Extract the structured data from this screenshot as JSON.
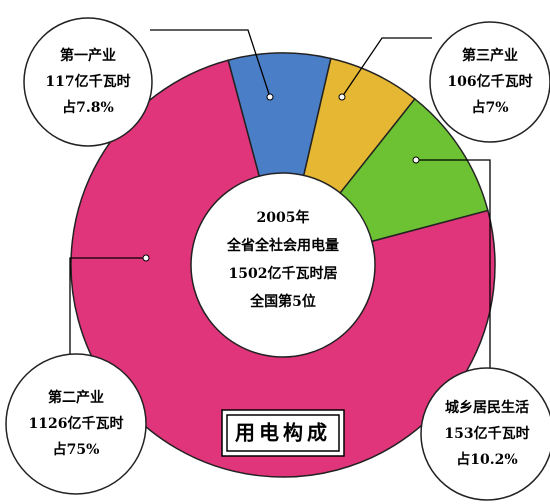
{
  "chart_data": {
    "type": "pie",
    "title": "用电构成",
    "center_text": [
      "2005年",
      "全省全社会用电量",
      "1502亿千瓦时居",
      "全国第5位"
    ],
    "categories": [
      "第一产业",
      "第三产业",
      "城乡居民生活",
      "第二产业"
    ],
    "values": [
      117,
      106,
      153,
      1126
    ],
    "value_labels": [
      "117亿千瓦时",
      "106亿千瓦时",
      "153亿千瓦时",
      "1126亿千瓦时"
    ],
    "share_labels": [
      "占7.8%",
      "占7%",
      "占10.2%",
      "占75%"
    ],
    "colors": [
      "#4a7fc8",
      "#e6b733",
      "#6cc232",
      "#e0357b"
    ]
  }
}
